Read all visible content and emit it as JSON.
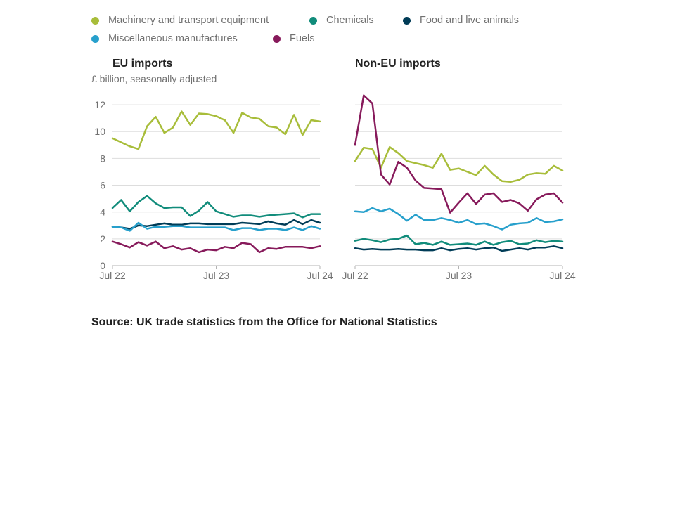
{
  "legend": {
    "row1": [
      {
        "label": "Machinery and transport equipment",
        "color": "#a8bd3a"
      },
      {
        "label": "Chemicals",
        "color": "#118c7b"
      },
      {
        "label": "Food and live animals",
        "color": "#003c57"
      }
    ],
    "row2": [
      {
        "label": "Miscellaneous manufactures",
        "color": "#27a0cc"
      },
      {
        "label": "Fuels",
        "color": "#871a5b"
      }
    ]
  },
  "subtitle": "£ billion, seasonally adjusted",
  "source": "Source: UK trade statistics from the Office for National Statistics",
  "chart_data": [
    {
      "type": "line",
      "title": "EU imports",
      "ylabel": "£ billion, seasonally adjusted",
      "ylim": [
        0,
        13
      ],
      "yticks": [
        0,
        2,
        4,
        6,
        8,
        10,
        12
      ],
      "x_tick_labels": [
        "Jul 22",
        "Jul 23",
        "Jul 24"
      ],
      "x": [
        "Jul 22",
        "Aug 22",
        "Sep 22",
        "Oct 22",
        "Nov 22",
        "Dec 22",
        "Jan 23",
        "Feb 23",
        "Mar 23",
        "Apr 23",
        "May 23",
        "Jun 23",
        "Jul 23",
        "Aug 23",
        "Sep 23",
        "Oct 23",
        "Nov 23",
        "Dec 23",
        "Jan 24",
        "Feb 24",
        "Mar 24",
        "Apr 24",
        "May 24",
        "Jun 24",
        "Jul 24"
      ],
      "grid": true,
      "series": [
        {
          "name": "Machinery and transport equipment",
          "color": "#a8bd3a",
          "values": [
            9.5,
            9.2,
            8.9,
            8.7,
            10.4,
            11.1,
            9.9,
            10.3,
            11.5,
            10.5,
            11.35,
            11.3,
            11.15,
            10.85,
            9.9,
            11.4,
            11.05,
            10.95,
            10.4,
            10.3,
            9.8,
            11.25,
            9.75,
            10.85,
            10.75
          ]
        },
        {
          "name": "Chemicals",
          "color": "#118c7b",
          "values": [
            4.3,
            4.9,
            4.05,
            4.75,
            5.2,
            4.65,
            4.3,
            4.35,
            4.35,
            3.7,
            4.1,
            4.75,
            4.05,
            3.85,
            3.65,
            3.75,
            3.75,
            3.65,
            3.75,
            3.8,
            3.85,
            3.9,
            3.6,
            3.85,
            3.85
          ]
        },
        {
          "name": "Food and live animals",
          "color": "#003c57",
          "values": [
            2.9,
            2.85,
            2.75,
            3.0,
            2.95,
            3.05,
            3.15,
            3.05,
            3.05,
            3.15,
            3.15,
            3.1,
            3.1,
            3.1,
            3.1,
            3.2,
            3.15,
            3.1,
            3.3,
            3.15,
            3.05,
            3.4,
            3.1,
            3.4,
            3.2
          ]
        },
        {
          "name": "Miscellaneous manufactures",
          "color": "#27a0cc",
          "values": [
            2.9,
            2.85,
            2.6,
            3.2,
            2.75,
            2.9,
            2.9,
            2.95,
            2.95,
            2.85,
            2.85,
            2.85,
            2.85,
            2.85,
            2.65,
            2.8,
            2.8,
            2.65,
            2.75,
            2.75,
            2.65,
            2.85,
            2.65,
            2.95,
            2.75
          ]
        },
        {
          "name": "Fuels",
          "color": "#871a5b",
          "values": [
            1.8,
            1.6,
            1.35,
            1.75,
            1.5,
            1.8,
            1.3,
            1.45,
            1.2,
            1.3,
            1.0,
            1.2,
            1.15,
            1.4,
            1.3,
            1.7,
            1.6,
            1.0,
            1.3,
            1.25,
            1.4,
            1.4,
            1.4,
            1.3,
            1.45
          ]
        }
      ]
    },
    {
      "type": "line",
      "title": "Non-EU imports",
      "ylim": [
        0,
        13
      ],
      "yticks": [
        0,
        2,
        4,
        6,
        8,
        10,
        12
      ],
      "x_tick_labels": [
        "Jul 22",
        "Jul 23",
        "Jul 24"
      ],
      "x": [
        "Jul 22",
        "Aug 22",
        "Sep 22",
        "Oct 22",
        "Nov 22",
        "Dec 22",
        "Jan 23",
        "Feb 23",
        "Mar 23",
        "Apr 23",
        "May 23",
        "Jun 23",
        "Jul 23",
        "Aug 23",
        "Sep 23",
        "Oct 23",
        "Nov 23",
        "Dec 23",
        "Jan 24",
        "Feb 24",
        "Mar 24",
        "Apr 24",
        "May 24",
        "Jun 24",
        "Jul 24"
      ],
      "grid": true,
      "series": [
        {
          "name": "Machinery and transport equipment",
          "color": "#a8bd3a",
          "values": [
            7.8,
            8.8,
            8.7,
            7.3,
            8.85,
            8.4,
            7.8,
            7.65,
            7.5,
            7.3,
            8.35,
            7.15,
            7.25,
            7.0,
            6.75,
            7.45,
            6.8,
            6.3,
            6.25,
            6.4,
            6.8,
            6.9,
            6.85,
            7.45,
            7.1
          ]
        },
        {
          "name": "Chemicals",
          "color": "#118c7b",
          "values": [
            1.85,
            2.0,
            1.9,
            1.75,
            1.95,
            2.0,
            2.25,
            1.6,
            1.7,
            1.55,
            1.8,
            1.55,
            1.6,
            1.65,
            1.55,
            1.8,
            1.55,
            1.75,
            1.85,
            1.6,
            1.65,
            1.9,
            1.75,
            1.85,
            1.8
          ]
        },
        {
          "name": "Food and live animals",
          "color": "#003c57",
          "values": [
            1.3,
            1.2,
            1.25,
            1.2,
            1.2,
            1.25,
            1.2,
            1.2,
            1.15,
            1.15,
            1.3,
            1.15,
            1.25,
            1.3,
            1.2,
            1.3,
            1.35,
            1.1,
            1.2,
            1.3,
            1.2,
            1.35,
            1.35,
            1.45,
            1.3
          ]
        },
        {
          "name": "Miscellaneous manufactures",
          "color": "#27a0cc",
          "values": [
            4.05,
            4.0,
            4.3,
            4.05,
            4.25,
            3.85,
            3.35,
            3.8,
            3.4,
            3.4,
            3.55,
            3.4,
            3.2,
            3.4,
            3.1,
            3.15,
            2.95,
            2.7,
            3.05,
            3.15,
            3.2,
            3.55,
            3.25,
            3.3,
            3.45
          ]
        },
        {
          "name": "Fuels",
          "color": "#871a5b",
          "values": [
            9.0,
            12.7,
            12.1,
            6.8,
            6.05,
            7.75,
            7.3,
            6.35,
            5.8,
            5.75,
            5.7,
            3.95,
            4.7,
            5.4,
            4.6,
            5.3,
            5.4,
            4.75,
            4.9,
            4.65,
            4.1,
            4.95,
            5.3,
            5.4,
            4.7
          ]
        }
      ]
    }
  ]
}
